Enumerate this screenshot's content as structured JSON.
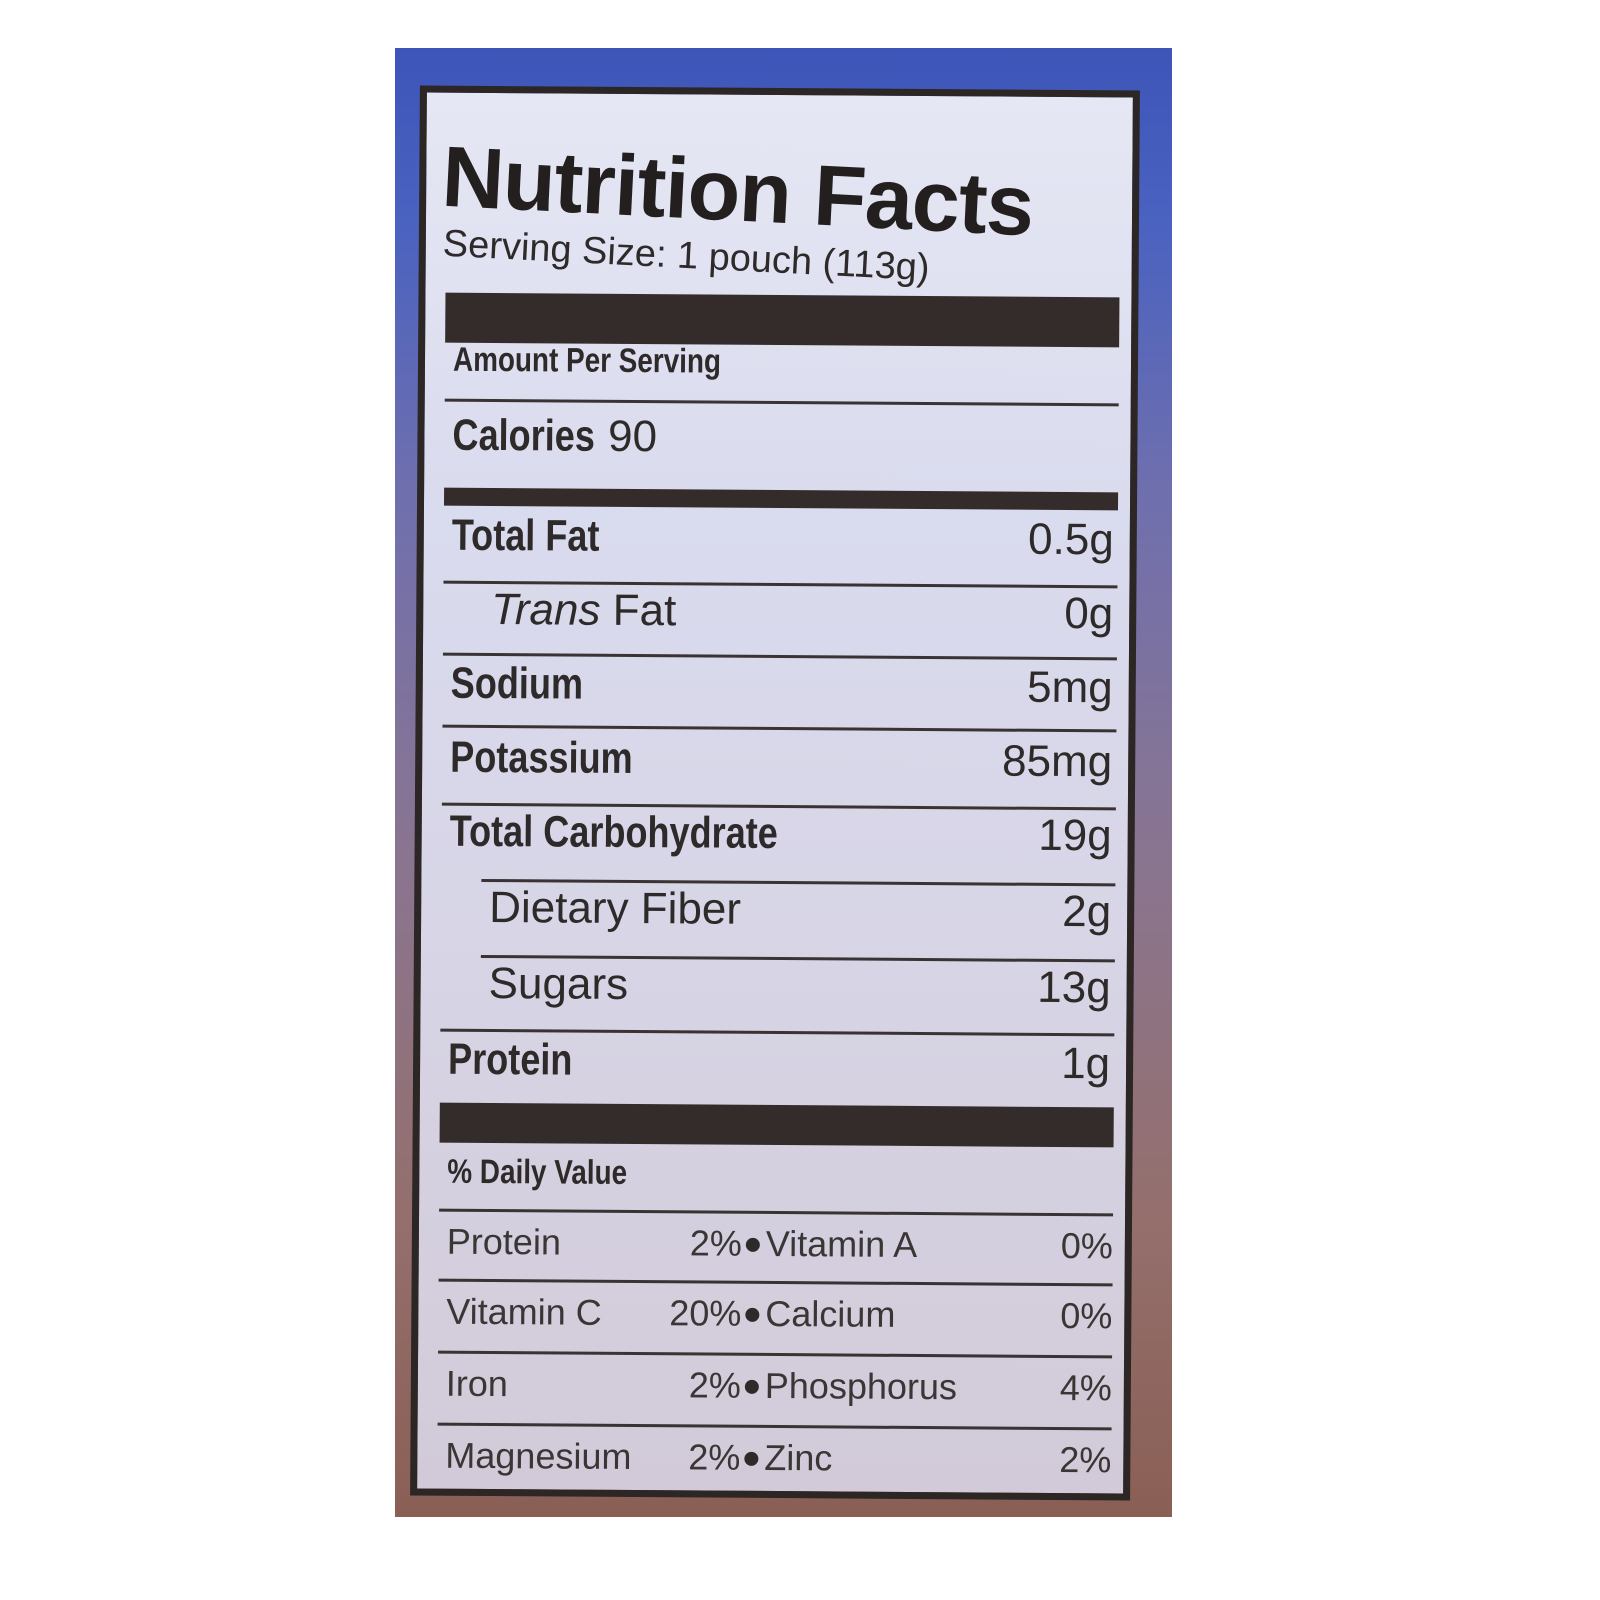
{
  "title": "Nutrition Facts",
  "serving_size": "Serving Size: 1 pouch (113g)",
  "amount_per_serving": "Amount Per Serving",
  "calories": {
    "label": "Calories",
    "value": "90"
  },
  "nutrients": [
    {
      "label": "Total Fat",
      "value": "0.5g",
      "bold": true
    },
    {
      "label": "Trans",
      "label_suffix": " Fat",
      "value": "0g",
      "bold": false
    },
    {
      "label": "Sodium",
      "value": "5mg",
      "bold": true
    },
    {
      "label": "Potassium",
      "value": "85mg",
      "bold": true
    },
    {
      "label": "Total Carbohydrate",
      "value": "19g",
      "bold": true
    },
    {
      "label": "Dietary Fiber",
      "value": "2g",
      "bold": false
    },
    {
      "label": "Sugars",
      "value": "13g",
      "bold": false
    },
    {
      "label": "Protein",
      "value": "1g",
      "bold": true
    }
  ],
  "daily_value_heading": "% Daily Value",
  "daily_values": [
    {
      "left": "Protein",
      "left_value": "2%",
      "right": "Vitamin A",
      "right_value": "0%"
    },
    {
      "left": "Vitamin C",
      "left_value": "20%",
      "right": "Calcium",
      "right_value": "0%"
    },
    {
      "left": "Iron",
      "left_value": "2%",
      "right": "Phosphorus",
      "right_value": "4%"
    },
    {
      "left": "Magnesium",
      "left_value": "2%",
      "right": "Zinc",
      "right_value": "2%"
    }
  ]
}
